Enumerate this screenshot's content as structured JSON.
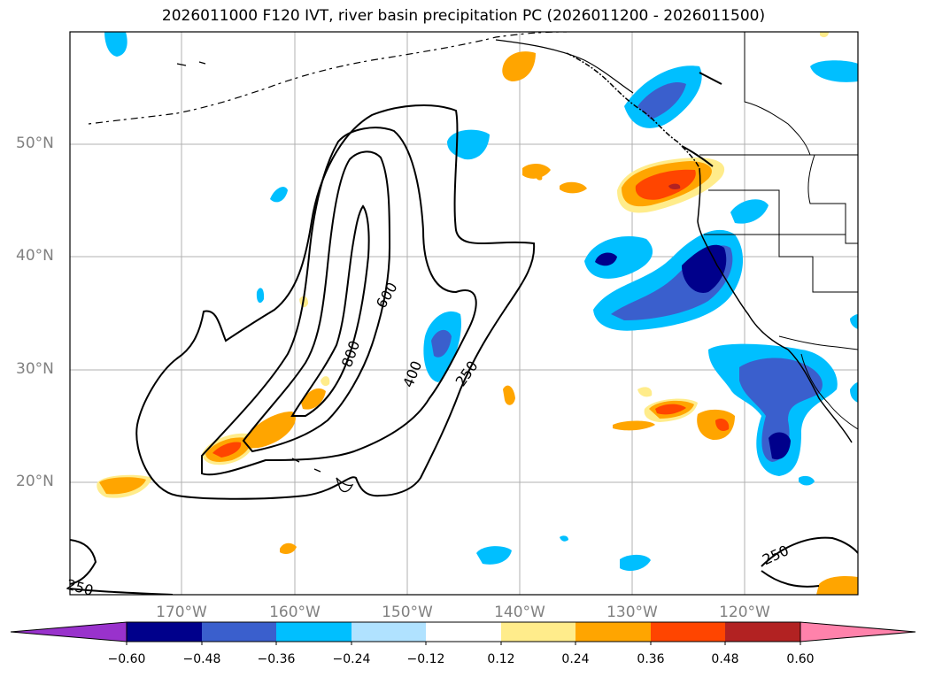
{
  "title": "2026011000 F120 IVT, river basin precipitation PC (2026011200 - 2026011500)",
  "map": {
    "lat_labels": [
      "50°N",
      "40°N",
      "30°N",
      "20°N"
    ],
    "lon_labels": [
      "170°W",
      "160°W",
      "150°W",
      "140°W",
      "130°W",
      "120°W"
    ],
    "ivt_contour_levels": [
      250,
      400,
      600,
      800
    ],
    "contour_labels": [
      "600",
      "800",
      "400",
      "250",
      "250",
      "250"
    ]
  },
  "colorbar": {
    "ticks": [
      "−0.60",
      "−0.48",
      "−0.36",
      "−0.24",
      "−0.12",
      "0.12",
      "0.24",
      "0.36",
      "0.48",
      "0.60"
    ],
    "colors": [
      "#9932cc",
      "#00008b",
      "#3a5fcd",
      "#00bfff",
      "#b0e2ff",
      "#ffffff",
      "#ffec8b",
      "#ffa500",
      "#ff4500",
      "#b22222",
      "#ff82ab"
    ]
  }
}
